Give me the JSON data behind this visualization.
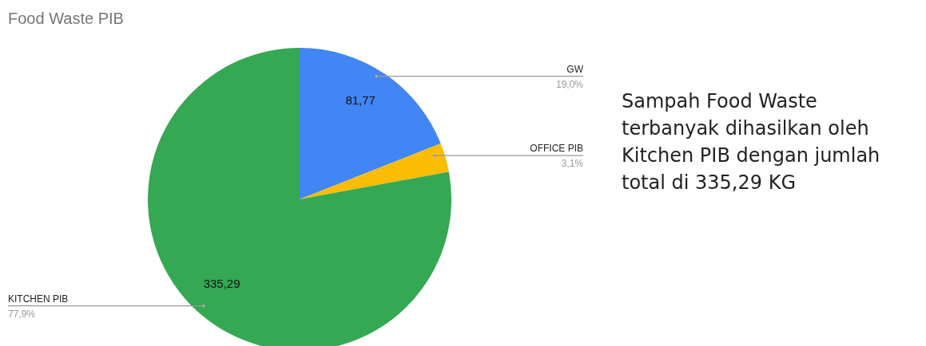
{
  "chart_data": {
    "type": "pie",
    "title": "Food Waste PIB",
    "categories": [
      "GW",
      "OFFICE PIB",
      "KITCHEN PIB"
    ],
    "values": [
      81.77,
      13.34,
      335.29
    ],
    "value_labels": [
      "81,77",
      null,
      "335,29"
    ],
    "colors": [
      "#4285f4",
      "#fbbc04",
      "#34a853"
    ],
    "annotations": [
      {
        "text": "19,0%",
        "x": "GW"
      },
      {
        "text": "3,1%",
        "x": "OFFICE PIB"
      },
      {
        "text": "77,9%",
        "x": "KITCHEN PIB"
      },
      "Sampah Food Waste terbanyak dihasilkan oleh Kitchen PIB dengan jumlah total di 335,29 KG"
    ],
    "legend": false
  }
}
